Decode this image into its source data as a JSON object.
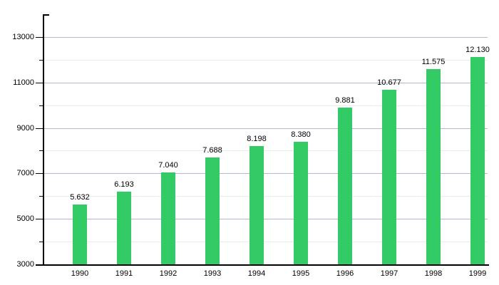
{
  "chart_data": {
    "type": "bar",
    "title": "",
    "xlabel": "",
    "ylabel": "",
    "categories": [
      "1990",
      "1991",
      "1992",
      "1993",
      "1994",
      "1995",
      "1996",
      "1997",
      "1998",
      "1999"
    ],
    "values": [
      5632,
      6193,
      7040,
      7688,
      8198,
      8380,
      9881,
      10677,
      11575,
      12130
    ],
    "value_labels": [
      "5.632",
      "6.193",
      "7.040",
      "7.688",
      "8.198",
      "8.380",
      "9.881",
      "10.677",
      "11.575",
      "12.130"
    ],
    "ylim": [
      3000,
      14000
    ],
    "y_major_ticks": [
      3000,
      5000,
      7000,
      9000,
      11000,
      13000
    ],
    "y_minor_ticks": [
      4000,
      6000,
      8000,
      10000,
      12000
    ],
    "grid": "horizontal",
    "legend": "none",
    "colors": {
      "bar": "#33cb66",
      "major_grid": "#b7b7ca",
      "minor_grid": "#ececec",
      "axis": "#000000",
      "text": "#000000",
      "background": "#ffffff"
    }
  }
}
